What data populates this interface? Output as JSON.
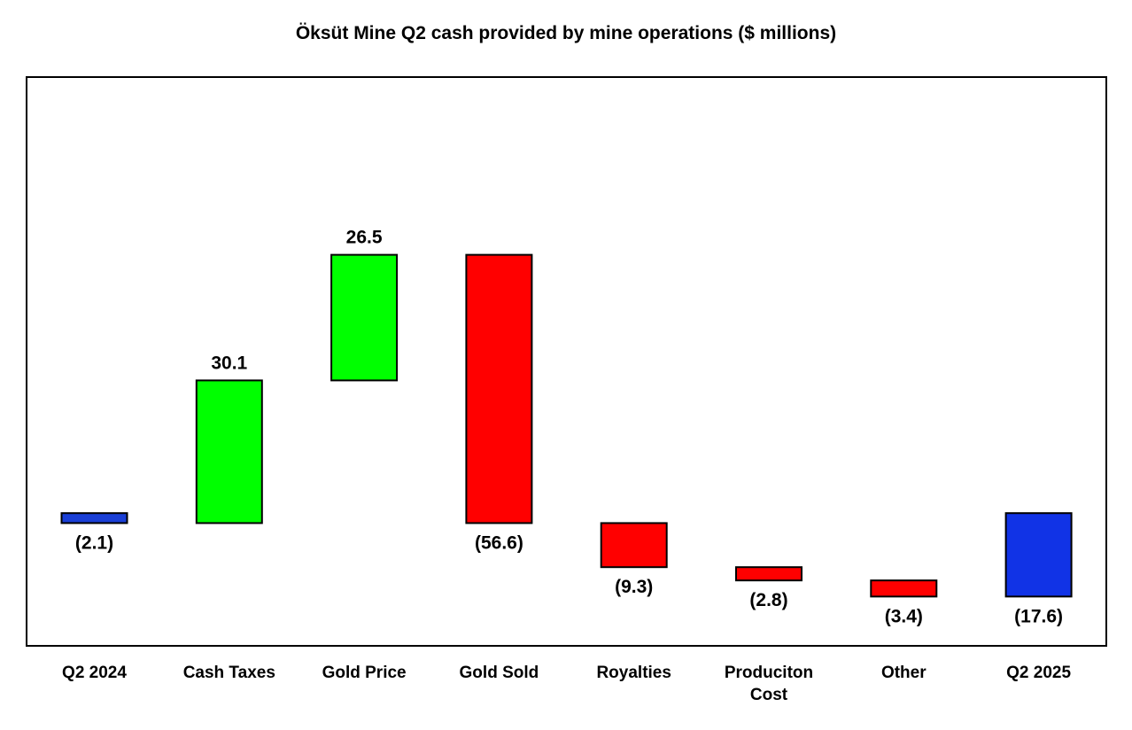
{
  "chart_data": {
    "type": "bar",
    "subtype": "waterfall",
    "title": "Öksüt Mine Q2 cash provided by mine operations ($ millions)",
    "xlabel": "",
    "ylabel": "",
    "grid": false,
    "categories": [
      "Q2 2024",
      "Cash Taxes",
      "Gold Price",
      "Gold Sold",
      "Royalties",
      "Produciton Cost",
      "Other",
      "Q2 2025"
    ],
    "category_lines": [
      [
        "Q2 2024"
      ],
      [
        "Cash Taxes"
      ],
      [
        "Gold Price"
      ],
      [
        "Gold Sold"
      ],
      [
        "Royalties"
      ],
      [
        "Produciton",
        "Cost"
      ],
      [
        "Other"
      ],
      [
        "Q2 2025"
      ]
    ],
    "values": [
      -2.1,
      30.1,
      26.5,
      -56.6,
      -9.3,
      -2.8,
      -3.4,
      -17.6
    ],
    "bar_kind": [
      "total",
      "increase",
      "increase",
      "decrease",
      "decrease",
      "decrease",
      "decrease",
      "total"
    ],
    "data_labels": [
      "(2.1)",
      "30.1",
      "26.5",
      "(56.6)",
      "(9.3)",
      "(2.8)",
      "(3.4)",
      "(17.6)"
    ],
    "ylim": [
      -28,
      92
    ],
    "colors": {
      "total_negative_small": "#1a3fd6",
      "total": "#1133e6",
      "increase": "#00ff00",
      "decrease": "#ff0000",
      "outline": "#000000"
    }
  }
}
